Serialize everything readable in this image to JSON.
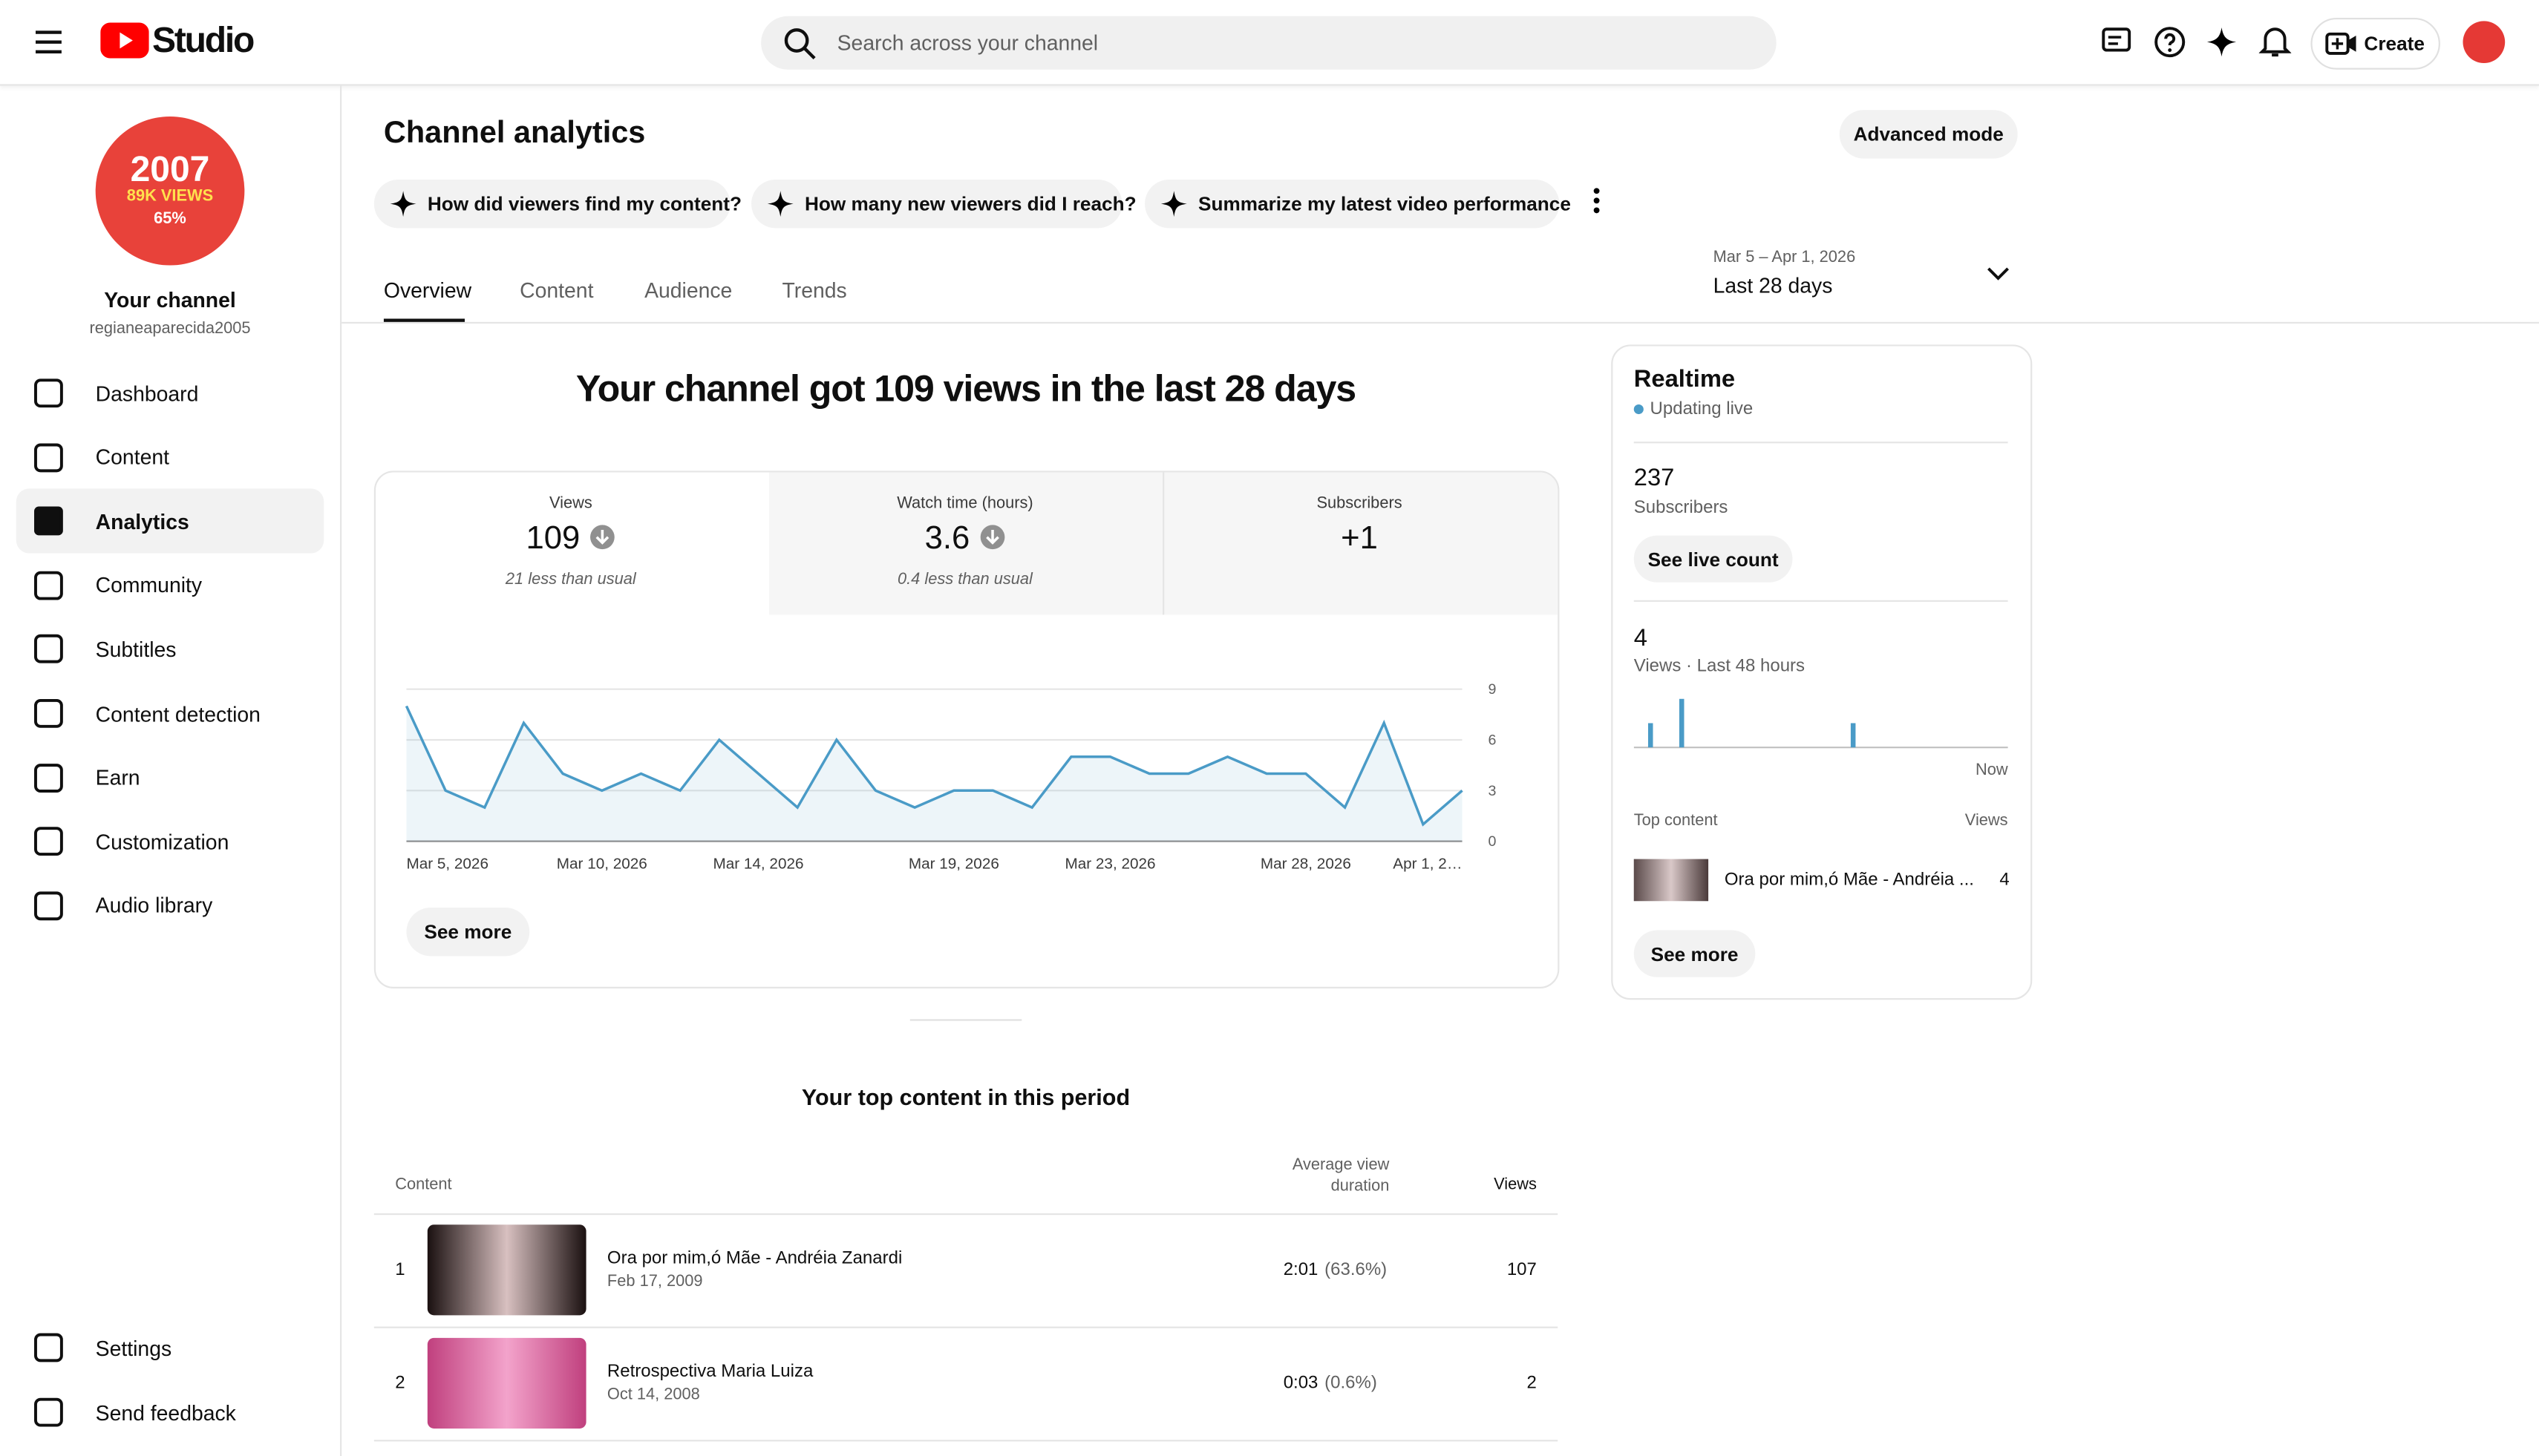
{
  "header": {
    "logo": "Studio",
    "search": "Search across your channel",
    "create": "Create"
  },
  "sidebar": {
    "avatar_lines": [
      "2007",
      "89K VIEWS",
      "65%"
    ],
    "channel_name": "Your channel",
    "handle": "regianeaparecida2005",
    "items": [
      "Dashboard",
      "Content",
      "Analytics",
      "Community",
      "Subtitles",
      "Content detection",
      "Earn",
      "Customization",
      "Audio library"
    ],
    "bottom_items": [
      "Settings",
      "Send feedback"
    ]
  },
  "analytics": {
    "title": "Channel analytics",
    "advanced": "Advanced mode",
    "prompts": [
      "How did viewers find my content?",
      "How many new viewers did I reach?",
      "Summarize my latest video performance"
    ],
    "tabs": [
      "Overview",
      "Content",
      "Audience",
      "Trends"
    ],
    "date_range": "Mar 5 – Apr 1, 2026",
    "date_label": "Last 28 days",
    "headline": "Your channel got 109 views in the last 28 days",
    "metrics": [
      {
        "label": "Views",
        "value": 109,
        "note": "21 less than usual"
      },
      {
        "label": "Watch time (hours)",
        "value": 3.6,
        "note": "0.4 less than usual"
      },
      {
        "label": "Subscribers",
        "value": "+1"
      }
    ],
    "chart": {
      "type": "line",
      "categories": [
        "Mar 5, 2026",
        null,
        null,
        null,
        null,
        "Mar 10, 2026",
        null,
        null,
        null,
        "Mar 14, 2026",
        null,
        null,
        null,
        null,
        "Mar 19, 2026",
        null,
        null,
        null,
        "Mar 23, 2026",
        null,
        null,
        null,
        null,
        "Mar 28, 2026",
        null,
        null,
        null,
        "Apr 1, 2…"
      ],
      "values": [
        8,
        3,
        2,
        7,
        4,
        3,
        4,
        3,
        6,
        4,
        2,
        6,
        3,
        2,
        3,
        3,
        2,
        5,
        5,
        4,
        4,
        5,
        4,
        4,
        2,
        7,
        1,
        3
      ],
      "color": "#4a9bc7",
      "ylim": [
        0,
        9
      ],
      "yticks": [
        0,
        3,
        6,
        9
      ],
      "grid": true
    },
    "see_more": "See more"
  },
  "realtime": {
    "title": "Realtime",
    "status": "Updating live",
    "subscribers": 237,
    "subscribers_label": "Subscribers",
    "live_count": "See live count",
    "views": 4,
    "views_label": "Views · Last 48 hours",
    "hourly": {
      "type": "bar",
      "values": [
        0,
        1,
        0,
        0,
        0,
        2,
        0,
        0,
        0,
        0,
        0,
        0,
        0,
        0,
        0,
        0,
        0,
        0,
        0,
        0,
        0,
        0,
        0,
        0,
        0,
        0,
        0,
        1,
        0,
        0,
        0,
        0,
        0,
        0,
        0,
        0,
        0,
        0,
        0,
        0,
        0,
        0,
        0,
        0,
        0,
        0,
        0,
        0
      ],
      "color": "#4a9bc7",
      "end_label": "Now"
    },
    "top_header": "Top content",
    "views_header": "Views",
    "top_title": "Ora por mim,ó Mãe - Andréia ...",
    "top_views": 4,
    "see_more": "See more"
  },
  "top_content": {
    "title": "Your top content in this period",
    "headers": [
      "Content",
      "Average view duration",
      "Views"
    ],
    "rows": [
      {
        "rank": 1,
        "title": "Ora por mim,ó Mãe - Andréia Zanardi",
        "date": "Feb 17, 2009",
        "duration": "2:01",
        "percent": "(63.6%)",
        "views": 107
      },
      {
        "rank": 2,
        "title": "Retrospectiva Maria Luiza",
        "date": "Oct 14, 2008",
        "duration": "0:03",
        "percent": "(0.6%)",
        "views": 2
      }
    ]
  }
}
